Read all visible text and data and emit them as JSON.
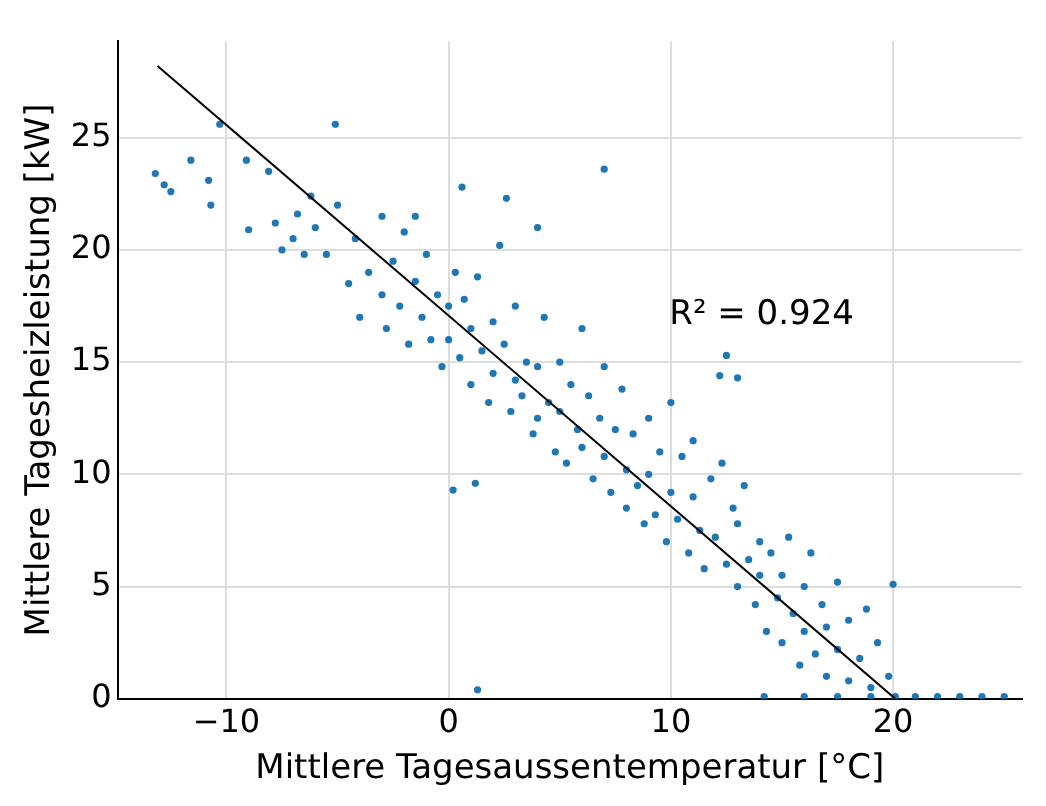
{
  "chart_data": {
    "type": "scatter",
    "xlabel": "Mittlere Tagesaussentemperatur [°C]",
    "ylabel": "Mittlere Tagesheizleistung [kW]",
    "annotations": [
      "R² = 0.924"
    ],
    "xlim": [
      -14.9,
      25.8
    ],
    "xticks": [
      -10,
      0,
      10,
      20
    ],
    "ylim": [
      0,
      29.3
    ],
    "yticks": [
      0,
      5,
      10,
      15,
      20,
      25
    ],
    "grid": true,
    "marker": "circle",
    "series": [
      {
        "color": "#1f77b4",
        "x": [
          -13.2,
          -12.8,
          -12.5,
          -11.6,
          -10.3,
          -9.1,
          -8.1,
          -5.1,
          -7.8,
          -9.0,
          -10.8,
          -6.2,
          -7.0,
          -6.5,
          -10.7,
          -7.5,
          -6.8,
          -6.0,
          -5.5,
          -5.0,
          -4.5,
          -4.2,
          -4.0,
          -3.6,
          -3.0,
          -3.0,
          -2.8,
          -2.5,
          -2.2,
          -2.0,
          -1.8,
          -1.5,
          -1.2,
          -1.0,
          -0.8,
          -0.5,
          -0.3,
          0.0,
          0.0,
          0.3,
          0.5,
          0.7,
          1.0,
          1.0,
          1.3,
          1.5,
          1.8,
          2.0,
          2.0,
          2.3,
          2.5,
          2.8,
          3.0,
          3.0,
          3.3,
          3.5,
          3.8,
          4.0,
          4.0,
          4.3,
          4.5,
          4.8,
          5.0,
          5.0,
          5.3,
          5.5,
          5.8,
          6.0,
          6.0,
          6.3,
          6.5,
          6.8,
          7.0,
          7.0,
          7.3,
          7.5,
          7.8,
          8.0,
          8.0,
          8.3,
          8.5,
          8.8,
          9.0,
          9.0,
          9.3,
          9.5,
          9.8,
          10.0,
          10.0,
          10.3,
          10.5,
          10.8,
          11.0,
          11.0,
          11.3,
          11.5,
          11.8,
          12.0,
          12.3,
          12.5,
          12.8,
          13.0,
          13.0,
          13.3,
          13.5,
          13.8,
          14.0,
          14.0,
          14.3,
          14.5,
          14.8,
          15.0,
          15.0,
          15.3,
          15.5,
          15.8,
          16.0,
          16.0,
          16.3,
          16.5,
          16.8,
          17.0,
          17.0,
          17.5,
          17.5,
          18.0,
          18.0,
          18.5,
          18.8,
          19.0,
          19.3,
          19.8,
          20.1,
          20.0,
          14.2,
          16.0,
          17.5,
          19.0,
          21.0,
          22.0,
          23.0,
          24.0,
          25.0,
          1.3,
          0.2,
          1.2,
          12.5,
          12.2,
          13.0,
          7.0,
          2.6,
          0.6,
          -1.5,
          4.0
        ],
        "values": [
          23.4,
          22.9,
          22.6,
          24.0,
          25.6,
          24.0,
          23.5,
          25.6,
          21.2,
          20.9,
          23.1,
          22.4,
          20.5,
          19.8,
          22.0,
          20.0,
          21.6,
          21.0,
          19.8,
          22.0,
          18.5,
          20.5,
          17.0,
          19.0,
          21.5,
          18.0,
          16.5,
          19.5,
          17.5,
          20.8,
          15.8,
          18.6,
          17.0,
          19.8,
          16.0,
          18.0,
          14.8,
          17.5,
          16.0,
          19.0,
          15.2,
          17.8,
          14.0,
          16.5,
          18.8,
          15.5,
          13.2,
          16.8,
          14.5,
          20.2,
          15.8,
          12.8,
          14.2,
          17.5,
          13.5,
          15.0,
          11.8,
          14.8,
          12.5,
          17.0,
          13.2,
          11.0,
          15.0,
          12.8,
          10.5,
          14.0,
          12.0,
          16.5,
          11.2,
          13.5,
          9.8,
          12.5,
          14.8,
          10.8,
          9.2,
          12.0,
          13.8,
          10.2,
          8.5,
          11.8,
          9.5,
          7.8,
          12.5,
          10.0,
          8.2,
          11.0,
          7.0,
          9.2,
          13.2,
          8.0,
          10.8,
          6.5,
          9.0,
          11.5,
          7.5,
          5.8,
          9.8,
          7.2,
          10.5,
          6.0,
          8.5,
          5.0,
          7.8,
          9.5,
          6.2,
          4.2,
          7.0,
          5.5,
          3.0,
          6.5,
          4.5,
          2.5,
          5.5,
          7.2,
          3.8,
          1.5,
          5.0,
          3.0,
          6.5,
          2.0,
          4.2,
          1.0,
          3.2,
          5.2,
          2.2,
          0.8,
          3.5,
          1.8,
          4.0,
          0.5,
          2.5,
          1.0,
          0.1,
          5.1,
          0.1,
          0.1,
          0.1,
          0.1,
          0.1,
          0.1,
          0.1,
          0.1,
          0.1,
          0.4,
          9.3,
          9.6,
          15.3,
          14.4,
          14.3,
          23.6,
          22.3,
          22.8,
          21.5,
          21.0
        ]
      },
      {
        "type": "line",
        "color": "#000000",
        "marker": "none",
        "line_style": "solid",
        "x": [
          -13.1,
          20.1
        ],
        "values": [
          28.2,
          0.0
        ]
      }
    ]
  }
}
